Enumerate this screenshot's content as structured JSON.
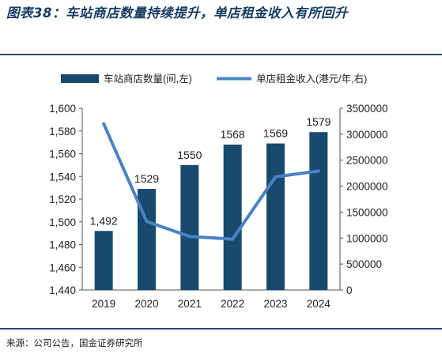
{
  "title": "图表38：车站商店数量持续提升，单店租金收入有所回升",
  "source": "来源：公司公告，国金证券研究所",
  "colors": {
    "bar": "#184a6e",
    "line": "#4a83c3",
    "rule": "#1f4e79",
    "text": "#222222"
  },
  "chart_data": {
    "type": "bar",
    "categories": [
      "2019",
      "2020",
      "2021",
      "2022",
      "2023",
      "2024"
    ],
    "series": [
      {
        "name": "车站商店数量(间,左)",
        "type": "bar",
        "axis": "left",
        "values": [
          1492,
          1529,
          1550,
          1568,
          1569,
          1579
        ],
        "labels": [
          "1,492",
          "1529",
          "1550",
          "1568",
          "1569",
          "1579"
        ]
      },
      {
        "name": "单店租金收入(港元/年,右)",
        "type": "line",
        "axis": "right",
        "values": [
          3200000,
          1320000,
          1030000,
          980000,
          2180000,
          2290000
        ]
      }
    ],
    "ylim_left": [
      1440,
      1600
    ],
    "yticks_left": [
      "1,440",
      "1,460",
      "1,480",
      "1,500",
      "1,520",
      "1,540",
      "1,560",
      "1,580",
      "1,600"
    ],
    "ylim_right": [
      0,
      3500000
    ],
    "yticks_right": [
      "0",
      "500000",
      "1000000",
      "1500000",
      "2000000",
      "2500000",
      "3000000",
      "3500000"
    ],
    "legend_position": "top",
    "grid": false
  }
}
